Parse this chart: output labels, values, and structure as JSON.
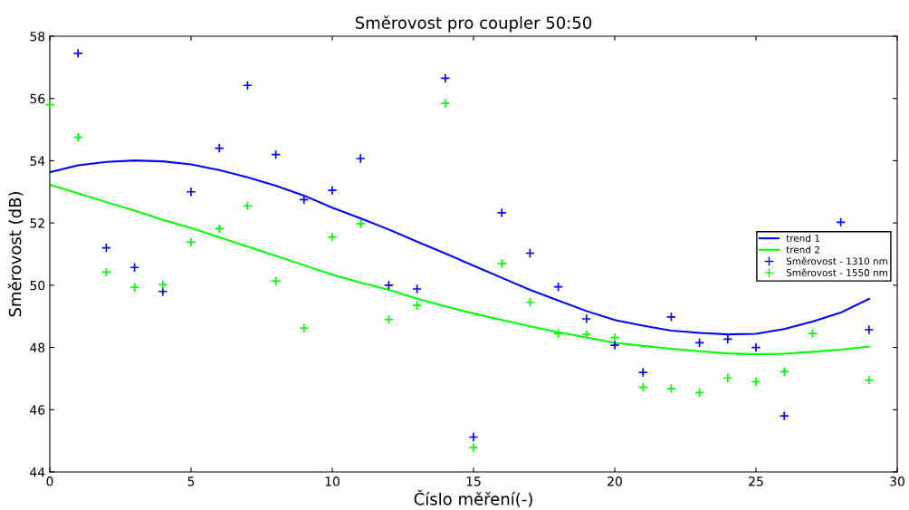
{
  "chart_data": {
    "type": "scatter",
    "title": "Směrovost pro coupler 50:50",
    "xlabel": "Číslo měření(-)",
    "ylabel": "Směrovost (dB)",
    "x": [
      0,
      1,
      2,
      3,
      4,
      5,
      6,
      7,
      8,
      9,
      10,
      11,
      12,
      13,
      14,
      15,
      16,
      17,
      18,
      19,
      20,
      21,
      22,
      23,
      24,
      25,
      26,
      27,
      28,
      29
    ],
    "series": [
      {
        "name": "trend 1",
        "type": "line",
        "color": "#0000ff",
        "marker": "none",
        "line_style": "solid",
        "values": [
          53.63,
          53.85,
          53.96,
          54.01,
          53.98,
          53.88,
          53.7,
          53.47,
          53.2,
          52.88,
          52.49,
          52.15,
          51.79,
          51.4,
          51.02,
          50.63,
          50.24,
          49.85,
          49.51,
          49.17,
          48.88,
          48.7,
          48.54,
          48.47,
          48.42,
          48.44,
          48.59,
          48.83,
          49.12,
          49.56
        ]
      },
      {
        "name": "trend 2",
        "type": "line",
        "color": "#00ff00",
        "marker": "none",
        "line_style": "solid",
        "values": [
          53.23,
          52.95,
          52.67,
          52.4,
          52.1,
          51.84,
          51.54,
          51.24,
          50.94,
          50.64,
          50.34,
          50.08,
          49.85,
          49.57,
          49.32,
          49.09,
          48.88,
          48.68,
          48.49,
          48.32,
          48.15,
          48.05,
          47.96,
          47.88,
          47.81,
          47.78,
          47.8,
          47.86,
          47.93,
          48.03
        ]
      },
      {
        "name": "Směrovost - 1310 nm",
        "color": "#0000ff",
        "marker": "cross",
        "values": [
          null,
          57.45,
          51.2,
          50.57,
          49.8,
          53.0,
          54.4,
          56.42,
          54.2,
          52.75,
          53.05,
          54.07,
          50.0,
          49.88,
          56.65,
          45.12,
          52.33,
          51.03,
          49.95,
          48.92,
          48.07,
          47.2,
          48.98,
          48.15,
          48.27,
          48.0,
          45.8,
          null,
          52.02,
          48.57
        ]
      },
      {
        "name": "Směrovost - 1550 nm",
        "color": "#00ff00",
        "marker": "cross",
        "values": [
          55.8,
          54.75,
          50.42,
          49.93,
          50.02,
          51.38,
          51.82,
          52.55,
          50.13,
          48.62,
          51.55,
          51.98,
          48.9,
          49.35,
          55.85,
          44.78,
          50.7,
          49.45,
          48.45,
          48.42,
          48.32,
          46.72,
          46.68,
          46.55,
          47.02,
          46.9,
          47.22,
          48.45,
          null,
          46.95
        ]
      }
    ],
    "xlim": [
      0,
      30
    ],
    "xticks": [
      0,
      5,
      10,
      15,
      20,
      25,
      30
    ],
    "ylim": [
      44,
      58
    ],
    "yticks": [
      44,
      46,
      48,
      50,
      52,
      54,
      56,
      58
    ],
    "grid": false,
    "legend": "center right"
  }
}
